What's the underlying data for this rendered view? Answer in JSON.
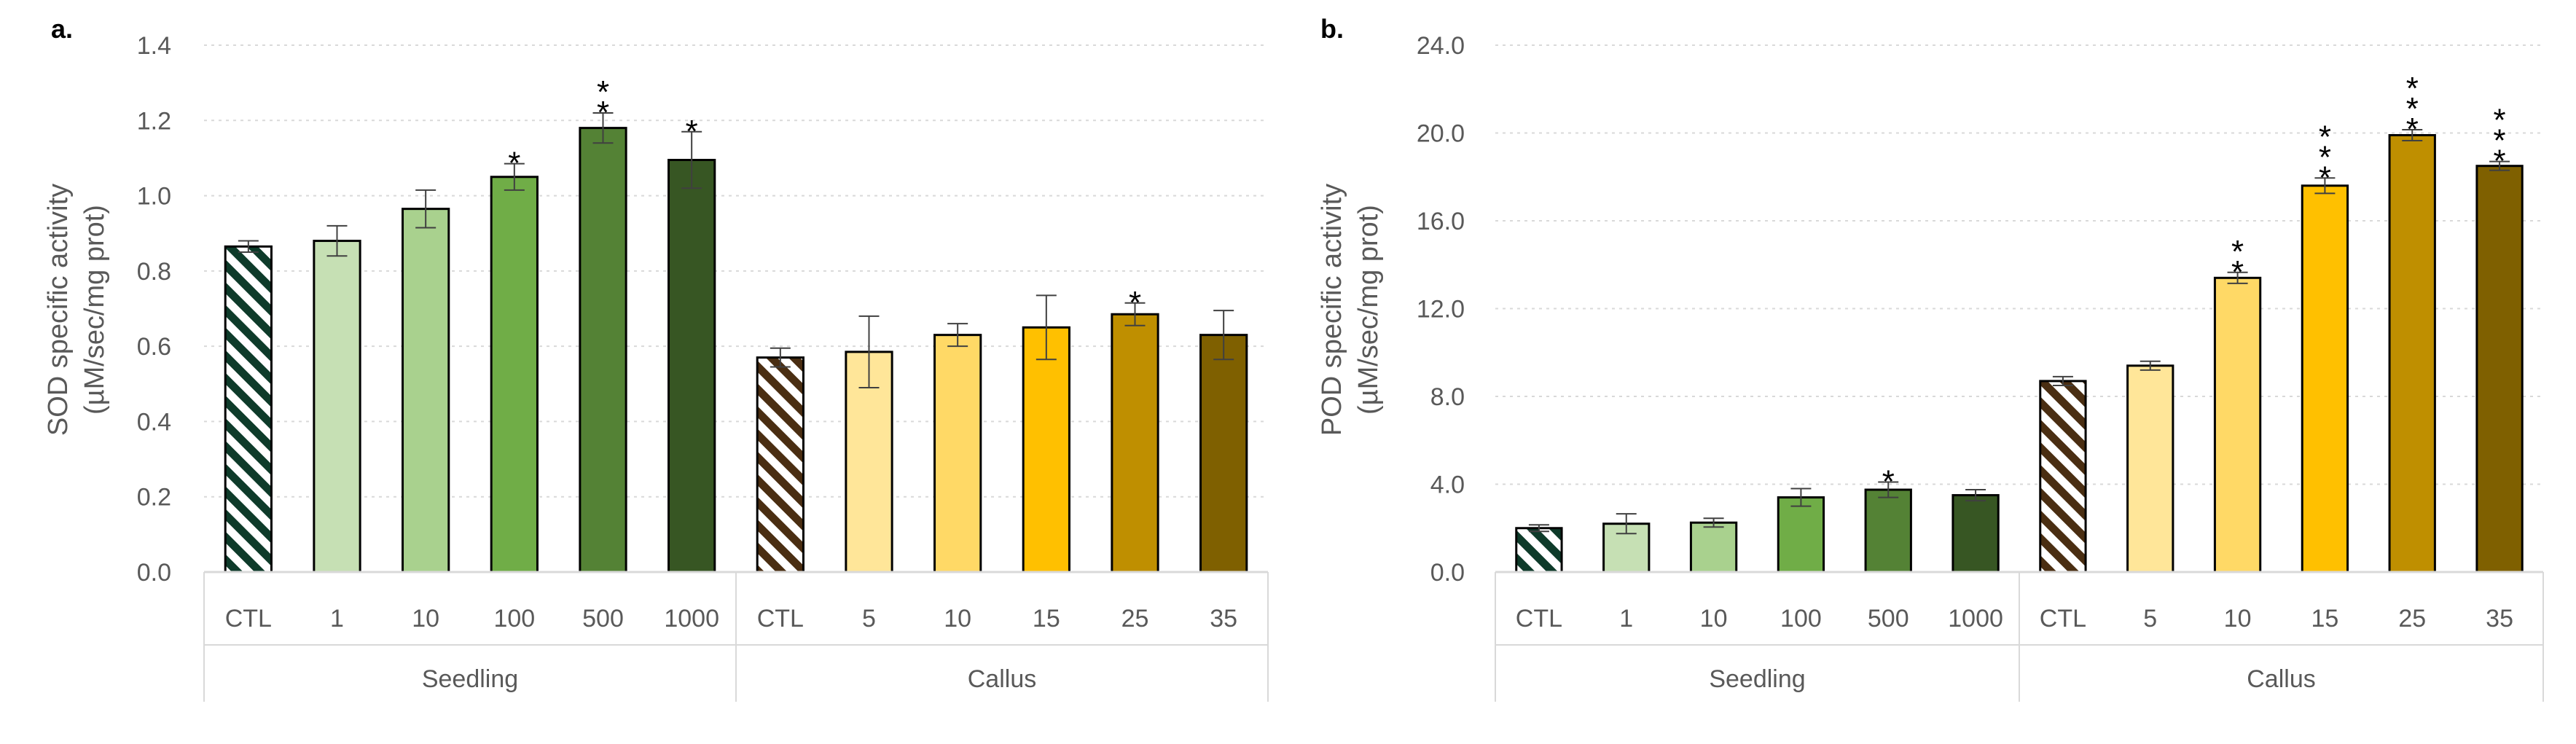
{
  "chart_data": [
    {
      "panel": "a.",
      "type": "bar",
      "ylabel": "SOD specific activity",
      "ylabel2": "(µM/sec/mg prot)",
      "ylim": [
        0,
        1.4
      ],
      "yticks": [
        "0.0",
        "0.2",
        "0.4",
        "0.6",
        "0.8",
        "1.0",
        "1.2",
        "1.4"
      ],
      "grid": true,
      "groups": [
        {
          "name": "Seedling",
          "categories": [
            "CTL",
            "1",
            "10",
            "100",
            "500",
            "1000"
          ],
          "values": [
            0.865,
            0.88,
            0.965,
            1.05,
            1.18,
            1.095
          ],
          "errors": [
            0.015,
            0.04,
            0.05,
            0.035,
            0.04,
            0.075
          ],
          "stars": [
            0,
            0,
            0,
            1,
            2,
            1
          ],
          "colors": [
            "hatch-green",
            "#c6e0b4",
            "#a9d18e",
            "#70ad47",
            "#548235",
            "#375623"
          ]
        },
        {
          "name": "Callus",
          "categories": [
            "CTL",
            "5",
            "10",
            "15",
            "25",
            "35"
          ],
          "values": [
            0.57,
            0.585,
            0.63,
            0.65,
            0.685,
            0.63
          ],
          "errors": [
            0.025,
            0.095,
            0.03,
            0.085,
            0.03,
            0.065
          ],
          "stars": [
            0,
            0,
            0,
            0,
            1,
            0
          ],
          "colors": [
            "hatch-brown",
            "#ffe699",
            "#ffd966",
            "#ffc000",
            "#bf8f00",
            "#7f6000"
          ]
        }
      ]
    },
    {
      "panel": "b.",
      "type": "bar",
      "ylabel": "POD specific activity",
      "ylabel2": "(µM/sec/mg prot)",
      "ylim": [
        0,
        24
      ],
      "yticks": [
        "0.0",
        "4.0",
        "8.0",
        "12.0",
        "16.0",
        "20.0",
        "24.0"
      ],
      "grid": true,
      "groups": [
        {
          "name": "Seedling",
          "categories": [
            "CTL",
            "1",
            "10",
            "100",
            "500",
            "1000"
          ],
          "values": [
            2.0,
            2.2,
            2.25,
            3.4,
            3.75,
            3.5
          ],
          "errors": [
            0.15,
            0.45,
            0.2,
            0.4,
            0.35,
            0.25
          ],
          "stars": [
            0,
            0,
            0,
            0,
            1,
            0
          ],
          "colors": [
            "hatch-green",
            "#c6e0b4",
            "#a9d18e",
            "#70ad47",
            "#548235",
            "#375623"
          ]
        },
        {
          "name": "Callus",
          "categories": [
            "CTL",
            "5",
            "10",
            "15",
            "25",
            "35"
          ],
          "values": [
            8.7,
            9.4,
            13.4,
            17.6,
            19.9,
            18.5
          ],
          "errors": [
            0.2,
            0.2,
            0.25,
            0.35,
            0.25,
            0.2
          ],
          "stars": [
            0,
            0,
            2,
            3,
            3,
            3
          ],
          "colors": [
            "hatch-brown",
            "#ffe699",
            "#ffd966",
            "#ffc000",
            "#bf8f00",
            "#7f6000"
          ]
        }
      ]
    }
  ]
}
